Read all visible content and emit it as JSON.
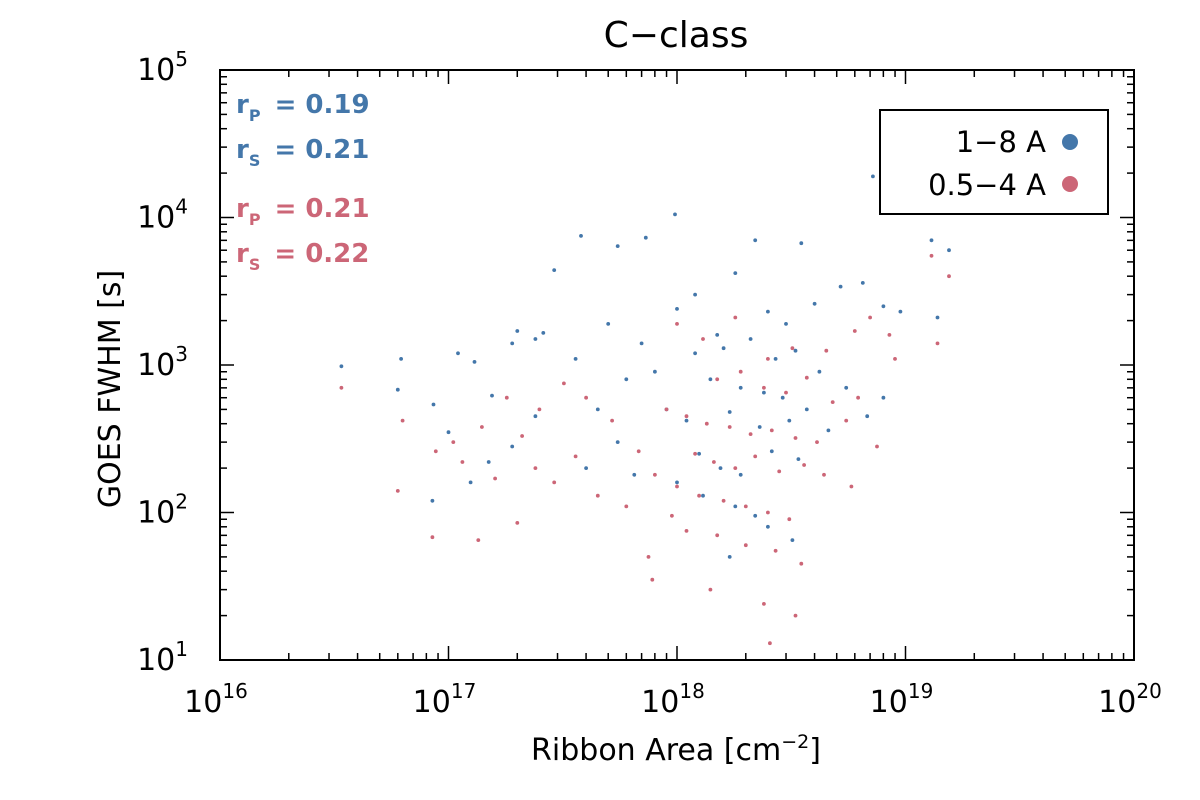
{
  "chart_data": {
    "type": "scatter",
    "title": "C−class",
    "xlabel": "Ribbon Area [cm⁻²]",
    "ylabel": "GOES FWHM [s]",
    "x_scale": "log",
    "y_scale": "log",
    "xlim": [
      1e+16,
      1e+20
    ],
    "ylim": [
      10,
      100000
    ],
    "x_ticks": [
      {
        "value": 1e+16,
        "base": "10",
        "exp": "16"
      },
      {
        "value": 1e+17,
        "base": "10",
        "exp": "17"
      },
      {
        "value": 1e+18,
        "base": "10",
        "exp": "18"
      },
      {
        "value": 1e+19,
        "base": "10",
        "exp": "19"
      },
      {
        "value": 1e+20,
        "base": "10",
        "exp": "20"
      }
    ],
    "y_ticks": [
      {
        "value": 10,
        "base": "10",
        "exp": "1"
      },
      {
        "value": 100,
        "base": "10",
        "exp": "2"
      },
      {
        "value": 1000,
        "base": "10",
        "exp": "3"
      },
      {
        "value": 10000,
        "base": "10",
        "exp": "4"
      },
      {
        "value": 100000,
        "base": "10",
        "exp": "5"
      }
    ],
    "grid": false,
    "legend_position": "top-right",
    "series": [
      {
        "name": "1−8 A",
        "color": "#4477aa",
        "points": [
          [
            3.4e+16,
            980
          ],
          [
            6.2e+16,
            1100
          ],
          [
            6e+16,
            680
          ],
          [
            8.5e+16,
            120
          ],
          [
            8.6e+16,
            540
          ],
          [
            1.1e+17,
            1200
          ],
          [
            1.3e+17,
            1050
          ],
          [
            1.55e+17,
            620
          ],
          [
            1.9e+17,
            1400
          ],
          [
            2e+17,
            1700
          ],
          [
            2.4e+17,
            1500
          ],
          [
            2.6e+17,
            1650
          ],
          [
            2.9e+17,
            4400
          ],
          [
            3.8e+17,
            7500
          ],
          [
            5.5e+17,
            6400
          ],
          [
            7.3e+17,
            7300
          ],
          [
            9.8e+17,
            10500
          ],
          [
            2.2e+18,
            7000
          ],
          [
            3.5e+18,
            6700
          ],
          [
            7.2e+18,
            19000
          ],
          [
            1.3e+19,
            7000
          ],
          [
            1.55e+19,
            6000
          ],
          [
            1.38e+19,
            2100
          ],
          [
            9.5e+18,
            2300
          ],
          [
            8e+18,
            2500
          ],
          [
            1e+18,
            2400
          ],
          [
            1.2e+18,
            3000
          ],
          [
            1.8e+18,
            4200
          ],
          [
            2.5e+18,
            2300
          ],
          [
            3e+18,
            1900
          ],
          [
            4e+18,
            2600
          ],
          [
            5.2e+18,
            3400
          ],
          [
            6.5e+18,
            3600
          ],
          [
            1.5e+18,
            1600
          ],
          [
            8e+17,
            900
          ],
          [
            7e+17,
            1400
          ],
          [
            6e+17,
            800
          ],
          [
            5e+17,
            1900
          ],
          [
            4.5e+17,
            500
          ],
          [
            3.6e+17,
            1100
          ],
          [
            1.2e+18,
            1200
          ],
          [
            1.6e+18,
            1300
          ],
          [
            2.1e+18,
            1500
          ],
          [
            2.7e+18,
            1100
          ],
          [
            3.3e+18,
            1250
          ],
          [
            4.2e+18,
            900
          ],
          [
            5.5e+18,
            700
          ],
          [
            1.4e+18,
            800
          ],
          [
            1.9e+18,
            700
          ],
          [
            2.4e+18,
            650
          ],
          [
            2.9e+18,
            600
          ],
          [
            3.7e+18,
            500
          ],
          [
            9e+17,
            500
          ],
          [
            1.1e+18,
            420
          ],
          [
            1.7e+18,
            480
          ],
          [
            2.3e+18,
            380
          ],
          [
            3.1e+18,
            420
          ],
          [
            4.6e+18,
            360
          ],
          [
            6.8e+18,
            450
          ],
          [
            8e+18,
            600
          ],
          [
            1.25e+18,
            250
          ],
          [
            1.55e+18,
            200
          ],
          [
            1.9e+18,
            180
          ],
          [
            2.6e+18,
            260
          ],
          [
            3.4e+18,
            230
          ],
          [
            1e+18,
            160
          ],
          [
            1.3e+18,
            130
          ],
          [
            1.8e+18,
            110
          ],
          [
            2.2e+18,
            95
          ],
          [
            1.7e+18,
            50
          ],
          [
            2.5e+18,
            80
          ],
          [
            3.2e+18,
            65
          ],
          [
            1.9e+17,
            280
          ],
          [
            2.4e+17,
            450
          ],
          [
            1.25e+17,
            160
          ],
          [
            1.5e+17,
            220
          ],
          [
            1e+17,
            350
          ],
          [
            4e+17,
            200
          ],
          [
            5.5e+17,
            300
          ],
          [
            6.5e+17,
            180
          ]
        ]
      },
      {
        "name": "0.5−4 A",
        "color": "#cc6677",
        "points": [
          [
            3.4e+16,
            700
          ],
          [
            6e+16,
            140
          ],
          [
            6.3e+16,
            420
          ],
          [
            8.5e+16,
            68
          ],
          [
            1.05e+17,
            300
          ],
          [
            1.35e+17,
            65
          ],
          [
            1.6e+17,
            170
          ],
          [
            2e+17,
            85
          ],
          [
            2.4e+17,
            200
          ],
          [
            2.9e+17,
            160
          ],
          [
            3.6e+17,
            240
          ],
          [
            4.5e+17,
            130
          ],
          [
            6e+17,
            110
          ],
          [
            7.5e+17,
            50
          ],
          [
            7.8e+17,
            35
          ],
          [
            1.4e+18,
            30
          ],
          [
            2.4e+18,
            24
          ],
          [
            2.55e+18,
            13
          ],
          [
            3.3e+18,
            20
          ],
          [
            1.3e+19,
            5500
          ],
          [
            1.55e+19,
            4000
          ],
          [
            1.38e+19,
            1400
          ],
          [
            9e+18,
            1100
          ],
          [
            8.5e+18,
            1600
          ],
          [
            1e+18,
            1900
          ],
          [
            1.3e+18,
            1500
          ],
          [
            1.8e+18,
            2100
          ],
          [
            2.5e+18,
            1100
          ],
          [
            3.2e+18,
            1300
          ],
          [
            4.5e+18,
            1250
          ],
          [
            6e+18,
            1700
          ],
          [
            7e+18,
            2100
          ],
          [
            1.5e+18,
            800
          ],
          [
            1.9e+18,
            900
          ],
          [
            2.4e+18,
            700
          ],
          [
            3e+18,
            650
          ],
          [
            3.7e+18,
            820
          ],
          [
            4.8e+18,
            560
          ],
          [
            6.2e+18,
            600
          ],
          [
            9e+17,
            500
          ],
          [
            1.1e+18,
            450
          ],
          [
            1.35e+18,
            400
          ],
          [
            1.7e+18,
            380
          ],
          [
            2.1e+18,
            340
          ],
          [
            2.6e+18,
            360
          ],
          [
            3.3e+18,
            320
          ],
          [
            4.1e+18,
            300
          ],
          [
            5.5e+18,
            420
          ],
          [
            7.5e+18,
            280
          ],
          [
            1.2e+18,
            250
          ],
          [
            1.45e+18,
            220
          ],
          [
            1.8e+18,
            200
          ],
          [
            2.2e+18,
            240
          ],
          [
            2.8e+18,
            190
          ],
          [
            3.6e+18,
            210
          ],
          [
            4.4e+18,
            180
          ],
          [
            5.8e+18,
            150
          ],
          [
            1e+18,
            150
          ],
          [
            1.25e+18,
            130
          ],
          [
            1.6e+18,
            120
          ],
          [
            2e+18,
            110
          ],
          [
            2.5e+18,
            100
          ],
          [
            3.1e+18,
            90
          ],
          [
            1.1e+18,
            75
          ],
          [
            1.5e+18,
            70
          ],
          [
            2e+18,
            60
          ],
          [
            2.7e+18,
            55
          ],
          [
            3.5e+18,
            45
          ],
          [
            9.5e+17,
            95
          ],
          [
            8e+17,
            180
          ],
          [
            6.8e+17,
            260
          ],
          [
            5.2e+17,
            420
          ],
          [
            4e+17,
            600
          ],
          [
            3.2e+17,
            750
          ],
          [
            2.5e+17,
            500
          ],
          [
            1.8e+17,
            600
          ],
          [
            1.4e+17,
            380
          ],
          [
            1.15e+17,
            220
          ],
          [
            8.8e+16,
            260
          ],
          [
            2.1e+17,
            330
          ]
        ]
      }
    ],
    "stats": [
      {
        "label": "r",
        "sub": "P",
        "value": "= 0.19",
        "color": "#4477aa"
      },
      {
        "label": "r",
        "sub": "S",
        "value": "= 0.21",
        "color": "#4477aa"
      },
      {
        "label": "r",
        "sub": "P",
        "value": "= 0.21",
        "color": "#cc6677"
      },
      {
        "label": "r",
        "sub": "S",
        "value": "= 0.22",
        "color": "#cc6677"
      }
    ]
  }
}
